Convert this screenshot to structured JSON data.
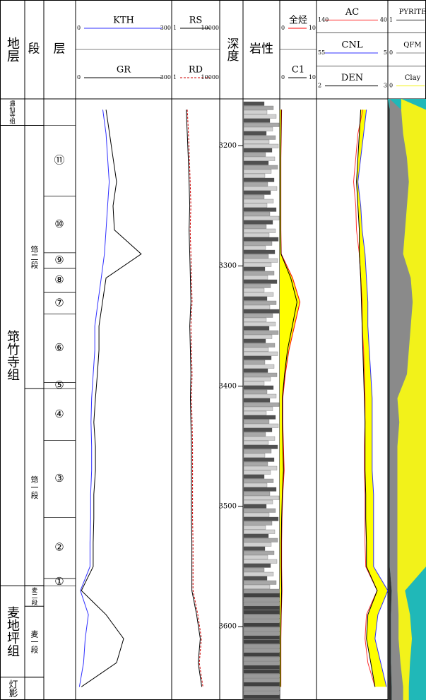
{
  "chart_data": {
    "type": "log",
    "headers": {
      "strat": "地层",
      "segment": "段",
      "layer": "层",
      "depth": "深度",
      "lithology": "岩性"
    },
    "ylim": [
      3161,
      3661
    ],
    "yticks": [
      3200,
      3300,
      3400,
      3500,
      3600
    ],
    "depth": [
      3170,
      3190,
      3210,
      3230,
      3250,
      3270,
      3290,
      3310,
      3330,
      3350,
      3370,
      3390,
      3410,
      3430,
      3450,
      3470,
      3490,
      3510,
      3530,
      3550,
      3570,
      3590,
      3610,
      3630,
      3650
    ],
    "formations": [
      {
        "name": "遇仙寺组",
        "bottom": 3183
      },
      {
        "name": "筇竹寺组",
        "bottom": 3566
      },
      {
        "name": "麦地坪组",
        "bottom": 3642
      },
      {
        "name": "灯影"
      }
    ],
    "segments": [
      {
        "name": "筇二段",
        "top": 3183,
        "bottom": 3402
      },
      {
        "name": "筇一段",
        "top": 3402,
        "bottom": 3566
      },
      {
        "name": "麦二段",
        "top": 3566,
        "bottom": 3583
      },
      {
        "name": "麦一段",
        "top": 3583,
        "bottom": 3642
      }
    ],
    "layers": [
      {
        "name": "⑪",
        "top": 3183,
        "bottom": 3242
      },
      {
        "name": "⑩",
        "top": 3242,
        "bottom": 3289
      },
      {
        "name": "⑨",
        "top": 3289,
        "bottom": 3302
      },
      {
        "name": "⑧",
        "top": 3302,
        "bottom": 3322
      },
      {
        "name": "⑦",
        "top": 3322,
        "bottom": 3340
      },
      {
        "name": "⑥",
        "top": 3340,
        "bottom": 3397
      },
      {
        "name": "⑤",
        "top": 3397,
        "bottom": 3402
      },
      {
        "name": "④",
        "top": 3402,
        "bottom": 3445
      },
      {
        "name": "③",
        "top": 3445,
        "bottom": 3509
      },
      {
        "name": "②",
        "top": 3509,
        "bottom": 3560
      },
      {
        "name": "①",
        "top": 3560,
        "bottom": 3566
      }
    ],
    "tracks": [
      {
        "series": [
          {
            "name": "KTH",
            "color": "#3030ff",
            "xlim": [
              0,
              300
            ],
            "values": [
              85,
              95,
              100,
              105,
              100,
              95,
              90,
              80,
              70,
              60,
              60,
              55,
              50,
              48,
              50,
              50,
              47,
              47,
              45,
              45,
              15,
              40,
              30,
              25,
              12
            ]
          },
          {
            "name": "GR",
            "color": "#000000",
            "xlim": [
              0,
              300
            ],
            "values": [
              95,
              106,
              117,
              128,
              117,
              121,
              205,
              95,
              84,
              73,
              73,
              68,
              62,
              57,
              62,
              62,
              57,
              57,
              55,
              55,
              18,
              95,
              150,
              128,
              18
            ]
          }
        ]
      },
      {
        "log": true,
        "series": [
          {
            "name": "RS",
            "color": "#000000",
            "xlim": [
              1,
              10000
            ],
            "values": [
              16,
              20,
              24,
              28,
              32,
              28,
              32,
              36,
              40,
              32,
              36,
              40,
              36,
              40,
              44,
              44,
              44,
              44,
              48,
              48,
              48,
              120,
              240,
              160,
              320
            ]
          },
          {
            "name": "RD",
            "color": "#cc0000",
            "dash": true,
            "xlim": [
              1,
              10000
            ],
            "values": [
              20,
              25,
              30,
              35,
              40,
              35,
              40,
              45,
              50,
              40,
              45,
              50,
              45,
              50,
              55,
              55,
              55,
              55,
              60,
              60,
              60,
              150,
              300,
              200,
              400
            ]
          }
        ]
      },
      {
        "fill": "#ffff00",
        "series": [
          {
            "name": "全烃",
            "color": "#ff0000",
            "xlim": [
              0,
              10
            ],
            "values": [
              0.5,
              0.4,
              0.3,
              0.3,
              0.3,
              0.3,
              0.4,
              3.5,
              5.5,
              4,
              2.5,
              1.5,
              0.8,
              0.8,
              1,
              1.2,
              0.8,
              0.6,
              0.5,
              0.5,
              0.6,
              0.4,
              0.3,
              0.3,
              0.3
            ]
          },
          {
            "name": "C1",
            "color": "#000000",
            "xlim": [
              0,
              10
            ],
            "values": [
              0.4,
              0.35,
              0.25,
              0.25,
              0.25,
              0.25,
              0.35,
              3,
              4.7,
              3.4,
              2.1,
              1.3,
              0.7,
              0.7,
              0.85,
              1,
              0.7,
              0.5,
              0.4,
              0.4,
              0.5,
              0.35,
              0.25,
              0.25,
              0.25
            ]
          }
        ]
      },
      {
        "fill": "#ffff00",
        "series": [
          {
            "name": "AC",
            "color": "#ff3030",
            "xlim": [
              140,
              40
            ],
            "values": [
              75,
              82,
              85,
              88,
              85,
              84,
              80,
              78,
              76,
              76,
              74,
              73,
              72,
              72,
              73,
              73,
              72,
              72,
              72,
              71,
              55,
              70,
              72,
              68,
              58
            ]
          },
          {
            "name": "CNL",
            "color": "#3030ff",
            "xlim": [
              55,
              5
            ],
            "values": [
              20,
              22,
              24,
              26,
              24,
              23,
              21,
              20,
              19,
              19,
              18,
              17,
              16,
              16,
              16,
              16,
              15,
              15,
              15,
              15,
              5,
              12,
              14,
              10,
              6
            ]
          },
          {
            "name": "DEN",
            "color": "#000000",
            "xlim": [
              2,
              3
            ],
            "values": [
              2.62,
              2.6,
              2.58,
              2.56,
              2.58,
              2.6,
              2.6,
              2.62,
              2.63,
              2.64,
              2.65,
              2.66,
              2.67,
              2.68,
              2.68,
              2.68,
              2.69,
              2.69,
              2.7,
              2.7,
              2.85,
              2.72,
              2.7,
              2.76,
              2.82
            ]
          }
        ]
      },
      {
        "stacked": true,
        "background": "#20b8b8",
        "series": [
          {
            "name": "PYRITE",
            "color": "#303030",
            "label_left": 1,
            "values": [
              0.05,
              0.05,
              0.05,
              0.05,
              0.05,
              0.05,
              0.05,
              0.05,
              0.05,
              0.05,
              0.05,
              0.05,
              0.05,
              0.05,
              0.05,
              0.05,
              0.05,
              0.05,
              0.05,
              0.05,
              0.1,
              0.08,
              0.08,
              0.08,
              0.1
            ]
          },
          {
            "name": "QFM",
            "color": "#8a8a8a",
            "label_left": 0,
            "values": [
              0.3,
              0.35,
              0.45,
              0.5,
              0.45,
              0.4,
              0.35,
              0.55,
              0.6,
              0.55,
              0.5,
              0.45,
              0.2,
              0.25,
              0.2,
              0.2,
              0.2,
              0.2,
              0.2,
              0.2,
              0.15,
              0.2,
              0.2,
              0.25,
              0.3
            ]
          },
          {
            "name": "Clay",
            "color": "#f2f21a",
            "label_left": 0,
            "values": [
              0.65,
              0.6,
              0.5,
              0.45,
              0.5,
              0.55,
              0.6,
              0.4,
              0.35,
              0.4,
              0.45,
              0.5,
              0.75,
              0.7,
              0.75,
              0.75,
              0.75,
              0.75,
              0.75,
              0.75,
              0.2,
              0.3,
              0.35,
              0.25,
              0.15
            ]
          }
        ]
      }
    ]
  }
}
